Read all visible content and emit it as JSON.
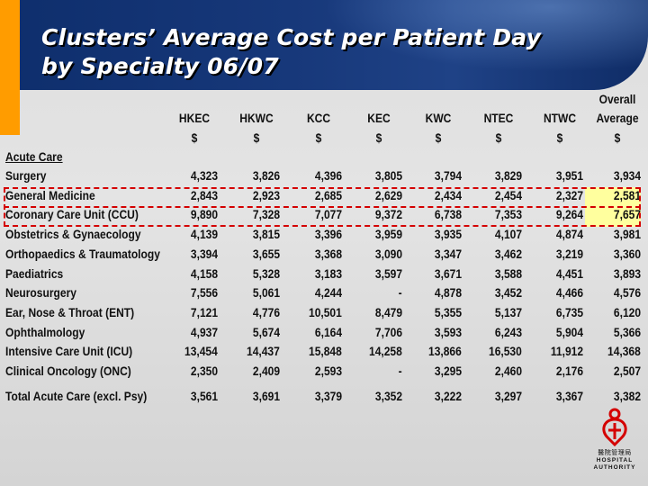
{
  "title": {
    "line1": "Clusters’ Average Cost per Patient Day",
    "line2": "by Specialty 06/07"
  },
  "columns": [
    {
      "name": "HKEC",
      "unit": "$"
    },
    {
      "name": "HKWC",
      "unit": "$"
    },
    {
      "name": "KCC",
      "unit": "$"
    },
    {
      "name": "KEC",
      "unit": "$"
    },
    {
      "name": "KWC",
      "unit": "$"
    },
    {
      "name": "NTEC",
      "unit": "$"
    },
    {
      "name": "NTWC",
      "unit": "$"
    },
    {
      "name_line1": "Overall",
      "name": "Average",
      "unit": "$"
    }
  ],
  "section_label": "Acute Care",
  "rows": [
    {
      "label": "Surgery",
      "values": [
        "4,323",
        "3,826",
        "4,396",
        "3,805",
        "3,794",
        "3,829",
        "3,951",
        "3,934"
      ]
    },
    {
      "label": "General Medicine",
      "values": [
        "2,843",
        "2,923",
        "2,685",
        "2,629",
        "2,434",
        "2,454",
        "2,327",
        "2,581"
      ]
    },
    {
      "label": "Coronary Care Unit (CCU)",
      "values": [
        "9,890",
        "7,328",
        "7,077",
        "9,372",
        "6,738",
        "7,353",
        "9,264",
        "7,657"
      ]
    },
    {
      "label": "Obstetrics & Gynaecology",
      "values": [
        "4,139",
        "3,815",
        "3,396",
        "3,959",
        "3,935",
        "4,107",
        "4,874",
        "3,981"
      ]
    },
    {
      "label": "Orthopaedics & Traumatology",
      "values": [
        "3,394",
        "3,655",
        "3,368",
        "3,090",
        "3,347",
        "3,462",
        "3,219",
        "3,360"
      ]
    },
    {
      "label": "Paediatrics",
      "values": [
        "4,158",
        "5,328",
        "3,183",
        "3,597",
        "3,671",
        "3,588",
        "4,451",
        "3,893"
      ]
    },
    {
      "label": "Neurosurgery",
      "values": [
        "7,556",
        "5,061",
        "4,244",
        "-",
        "4,878",
        "3,452",
        "4,466",
        "4,576"
      ]
    },
    {
      "label": "Ear, Nose & Throat (ENT)",
      "values": [
        "7,121",
        "4,776",
        "10,501",
        "8,479",
        "5,355",
        "5,137",
        "6,735",
        "6,120"
      ]
    },
    {
      "label": "Ophthalmology",
      "values": [
        "4,937",
        "5,674",
        "6,164",
        "7,706",
        "3,593",
        "6,243",
        "5,904",
        "5,366"
      ]
    },
    {
      "label": "Intensive Care Unit (ICU)",
      "values": [
        "13,454",
        "14,437",
        "15,848",
        "14,258",
        "13,866",
        "16,530",
        "11,912",
        "14,368"
      ]
    },
    {
      "label": "Clinical Oncology (ONC)",
      "values": [
        "2,350",
        "2,409",
        "2,593",
        "-",
        "3,295",
        "2,460",
        "2,176",
        "2,507"
      ]
    }
  ],
  "total": {
    "label": "Total Acute Care (excl. Psy)",
    "values": [
      "3,561",
      "3,691",
      "3,379",
      "3,352",
      "3,222",
      "3,297",
      "3,367",
      "3,382"
    ]
  },
  "logo": {
    "chinese": "醫院管理局",
    "english_line1": "HOSPITAL",
    "english_line2": "AUTHORITY"
  },
  "colors": {
    "header_navy": "#17387a",
    "accent_orange": "#ff9c00",
    "highlight_yellow": "#ffff9e",
    "dash_red": "#d40000",
    "logo_red": "#d40000"
  }
}
